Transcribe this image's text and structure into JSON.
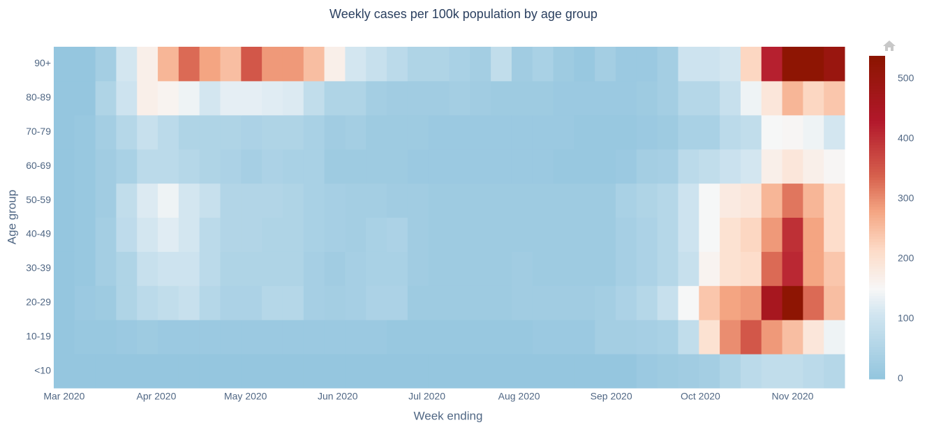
{
  "chart_data": {
    "type": "heatmap",
    "title": "Weekly cases per 100k population by age group",
    "x_label": "Week ending",
    "y_label": "Age group",
    "x": [
      "2020-03-01",
      "2020-03-08",
      "2020-03-15",
      "2020-03-22",
      "2020-03-29",
      "2020-04-05",
      "2020-04-12",
      "2020-04-19",
      "2020-04-26",
      "2020-05-03",
      "2020-05-10",
      "2020-05-17",
      "2020-05-24",
      "2020-05-31",
      "2020-06-07",
      "2020-06-14",
      "2020-06-21",
      "2020-06-28",
      "2020-07-05",
      "2020-07-12",
      "2020-07-19",
      "2020-07-26",
      "2020-08-02",
      "2020-08-09",
      "2020-08-16",
      "2020-08-23",
      "2020-08-30",
      "2020-09-06",
      "2020-09-13",
      "2020-09-20",
      "2020-09-27",
      "2020-10-04",
      "2020-10-11",
      "2020-10-18",
      "2020-10-25",
      "2020-11-01",
      "2020-11-08",
      "2020-11-15"
    ],
    "y": [
      "<10",
      "10-19",
      "20-29",
      "30-39",
      "40-49",
      "50-59",
      "60-69",
      "70-79",
      "80-89",
      "90+"
    ],
    "z": [
      [
        5,
        5,
        5,
        5,
        5,
        5,
        5,
        5,
        5,
        5,
        5,
        5,
        5,
        5,
        5,
        5,
        5,
        5,
        5,
        5,
        5,
        5,
        5,
        5,
        5,
        5,
        5,
        5,
        15,
        20,
        25,
        30,
        50,
        70,
        80,
        80,
        70,
        60
      ],
      [
        5,
        10,
        10,
        15,
        20,
        15,
        15,
        15,
        15,
        15,
        15,
        15,
        15,
        15,
        15,
        15,
        10,
        10,
        10,
        10,
        10,
        10,
        10,
        15,
        15,
        15,
        30,
        30,
        35,
        40,
        80,
        200,
        300,
        350,
        290,
        250,
        190,
        140
      ],
      [
        5,
        15,
        20,
        50,
        70,
        80,
        90,
        60,
        45,
        45,
        60,
        60,
        35,
        30,
        35,
        45,
        45,
        20,
        20,
        20,
        20,
        20,
        25,
        25,
        25,
        25,
        30,
        45,
        60,
        90,
        150,
        240,
        280,
        290,
        460,
        530,
        330,
        250
      ],
      [
        5,
        10,
        30,
        50,
        90,
        100,
        100,
        70,
        50,
        50,
        50,
        50,
        35,
        25,
        35,
        40,
        40,
        25,
        20,
        20,
        20,
        20,
        25,
        20,
        20,
        20,
        20,
        35,
        45,
        60,
        90,
        160,
        200,
        210,
        330,
        410,
        280,
        240
      ],
      [
        5,
        10,
        30,
        75,
        110,
        125,
        110,
        70,
        55,
        55,
        50,
        50,
        40,
        35,
        30,
        40,
        45,
        25,
        20,
        20,
        20,
        20,
        20,
        20,
        20,
        20,
        20,
        35,
        45,
        60,
        100,
        150,
        200,
        220,
        290,
        400,
        280,
        210
      ],
      [
        5,
        10,
        25,
        80,
        120,
        140,
        110,
        90,
        55,
        55,
        55,
        50,
        40,
        35,
        30,
        30,
        25,
        25,
        20,
        20,
        20,
        20,
        20,
        20,
        20,
        20,
        20,
        40,
        50,
        60,
        100,
        150,
        180,
        190,
        260,
        320,
        260,
        210
      ],
      [
        5,
        10,
        25,
        40,
        70,
        70,
        60,
        50,
        45,
        35,
        45,
        40,
        40,
        20,
        20,
        20,
        20,
        15,
        15,
        15,
        15,
        15,
        15,
        15,
        10,
        10,
        10,
        15,
        30,
        35,
        70,
        80,
        95,
        110,
        170,
        190,
        170,
        155
      ],
      [
        5,
        10,
        30,
        60,
        90,
        70,
        50,
        50,
        50,
        45,
        50,
        50,
        40,
        25,
        30,
        20,
        20,
        20,
        15,
        15,
        15,
        15,
        15,
        15,
        15,
        10,
        10,
        10,
        15,
        20,
        40,
        40,
        70,
        80,
        150,
        155,
        140,
        110
      ],
      [
        5,
        5,
        50,
        100,
        170,
        160,
        140,
        110,
        130,
        130,
        125,
        120,
        80,
        50,
        50,
        30,
        25,
        25,
        25,
        30,
        25,
        20,
        20,
        20,
        15,
        15,
        15,
        15,
        20,
        30,
        60,
        60,
        90,
        140,
        190,
        260,
        220,
        240
      ],
      [
        5,
        5,
        30,
        110,
        170,
        260,
        330,
        280,
        250,
        350,
        290,
        290,
        250,
        170,
        110,
        90,
        70,
        50,
        50,
        40,
        30,
        80,
        25,
        40,
        20,
        10,
        30,
        15,
        15,
        30,
        100,
        100,
        110,
        220,
        420,
        530,
        530,
        500
      ]
    ],
    "xlim": [
      "2020-02-26T12:00:00",
      "2020-11-18T12:00:00"
    ],
    "xticks": [
      {
        "value": "2020-03-01",
        "label": "Mar 2020"
      },
      {
        "value": "2020-04-01",
        "label": "Apr 2020"
      },
      {
        "value": "2020-05-01",
        "label": "May 2020"
      },
      {
        "value": "2020-06-01",
        "label": "Jun 2020"
      },
      {
        "value": "2020-07-01",
        "label": "Jul 2020"
      },
      {
        "value": "2020-08-01",
        "label": "Aug 2020"
      },
      {
        "value": "2020-09-01",
        "label": "Sep 2020"
      },
      {
        "value": "2020-10-01",
        "label": "Oct 2020"
      },
      {
        "value": "2020-11-01",
        "label": "Nov 2020"
      }
    ],
    "zlim": [
      0,
      538
    ],
    "colorbar_ticks": [
      0,
      100,
      200,
      300,
      400,
      500
    ],
    "colorscale": [
      [
        0,
        "#92c5de"
      ],
      [
        0.2,
        "#d1e5f0"
      ],
      [
        0.28,
        "#f7f7f7"
      ],
      [
        0.4,
        "#fddbc7"
      ],
      [
        0.52,
        "#f4a582"
      ],
      [
        0.63,
        "#d6604d"
      ],
      [
        0.8,
        "#b2182b"
      ],
      [
        1,
        "#8b1500"
      ]
    ]
  }
}
